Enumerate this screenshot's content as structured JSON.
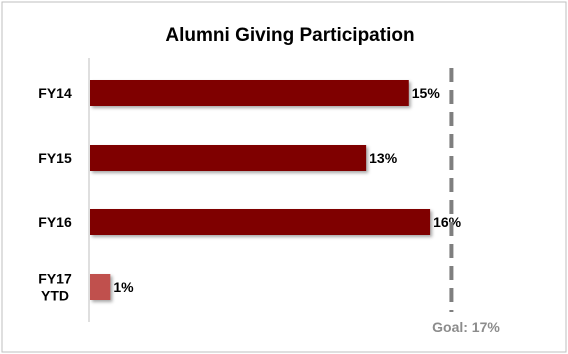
{
  "chart_data": {
    "type": "bar",
    "orientation": "horizontal",
    "title": "Alumni Giving Participation",
    "categories": [
      [
        "FY14"
      ],
      [
        "FY15"
      ],
      [
        "FY16"
      ],
      [
        "FY17",
        "YTD"
      ]
    ],
    "values": [
      15,
      13,
      16,
      1
    ],
    "data_labels": [
      "15%",
      "13%",
      "16%",
      "1%"
    ],
    "bar_colors": [
      "#7f0000",
      "#7f0000",
      "#7f0000",
      "#c0504d"
    ],
    "xlim": [
      0,
      18.2
    ],
    "goal": {
      "value": 17,
      "label": "Goal: 17%",
      "color": "#7f7f7f"
    },
    "grid": false,
    "legend": "none"
  }
}
